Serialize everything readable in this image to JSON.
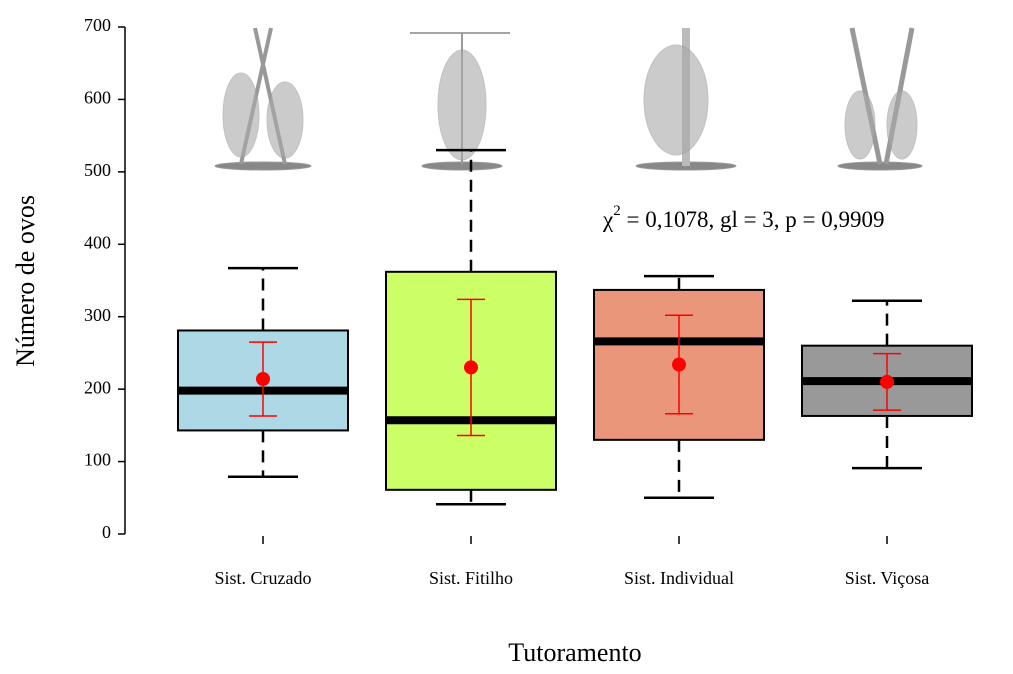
{
  "chart_data": {
    "type": "box",
    "x_label": "Tutoramento",
    "y_label": "Número de ovos",
    "annotation": {
      "symbol": "χ",
      "superscript": "2",
      "text": " = 0,1078, gl = 3, p = 0,9909"
    },
    "categories": [
      "Sist. Cruzado",
      "Sist. Fitilho",
      "Sist. Individual",
      "Sist. Viçosa"
    ],
    "colors": [
      "#add8e6",
      "#ccff66",
      "#e9967a",
      "#999999"
    ],
    "mean_color": "#ff0000",
    "whisker_low": [
      79,
      41,
      50,
      91
    ],
    "q1": [
      143,
      61,
      130,
      163
    ],
    "median": [
      198,
      157,
      266,
      211
    ],
    "q3": [
      281,
      362,
      337,
      260
    ],
    "whisker_high": [
      367,
      530,
      356,
      322
    ],
    "mean": [
      214,
      230,
      234,
      210
    ],
    "error": [
      51,
      94,
      68,
      39
    ],
    "ylim": [
      0,
      700
    ],
    "yticks": [
      0,
      100,
      200,
      300,
      400,
      500,
      600,
      700
    ]
  }
}
